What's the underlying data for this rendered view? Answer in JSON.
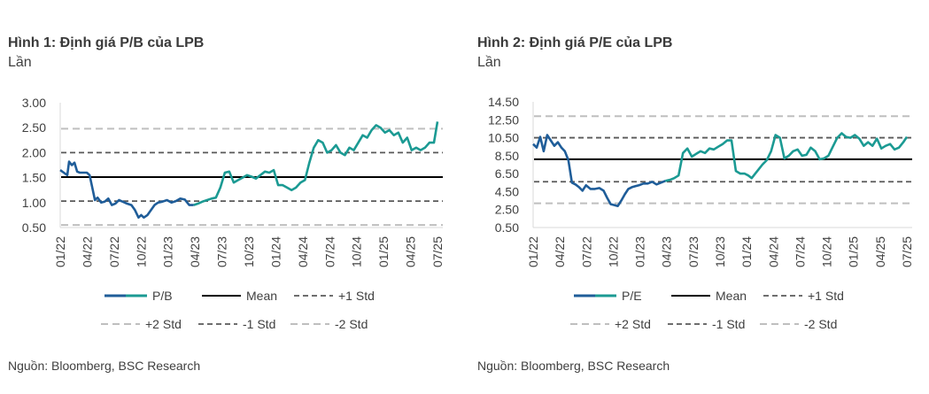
{
  "colors": {
    "series_dark": "#1f5d99",
    "series_teal": "#1b9a93",
    "mean": "#000000",
    "std1": "#595959",
    "std2": "#bfbfbf"
  },
  "legend_labels": {
    "series_pb": "P/B",
    "series_pe": "P/E",
    "mean": "Mean",
    "plus1": "+1 Std",
    "plus2": "+2 Std",
    "minus1": "-1 Std",
    "minus2": "-2 Std"
  },
  "charts": [
    {
      "title": "Hình 1: Định giá P/B của LPB",
      "unit": "Lần",
      "source": "Nguồn: Bloomberg, BSC Research"
    },
    {
      "title": "Hình 2: Định giá P/E của LPB",
      "unit": "Lần",
      "source": "Nguồn: Bloomberg, BSC Research"
    }
  ],
  "chart_data": [
    {
      "type": "line",
      "title": "Hình 1: Định giá P/B của LPB",
      "ylabel": "Lần",
      "ylim": [
        0.5,
        3.0
      ],
      "yticks": [
        "3.00",
        "2.50",
        "2.00",
        "1.50",
        "1.00",
        "0.50"
      ],
      "xlim": [
        0,
        43
      ],
      "xticks": [
        "01/22",
        "04/22",
        "07/22",
        "10/22",
        "01/23",
        "04/23",
        "07/23",
        "10/23",
        "01/24",
        "04/24",
        "07/24",
        "10/24",
        "01/25",
        "04/25",
        "07/25"
      ],
      "reference_lines": {
        "mean": 1.51,
        "plus1_std": 2.0,
        "plus2_std": 2.48,
        "minus1_std": 1.03,
        "minus2_std": 0.55
      },
      "series": [
        {
          "name": "P/B",
          "color_note": "dark blue until 04/23, teal afterwards",
          "x": [
            0,
            0.4,
            0.8,
            1.0,
            1.3,
            1.6,
            1.9,
            2.2,
            2.6,
            3.0,
            3.3,
            3.6,
            3.9,
            4.2,
            4.6,
            5.0,
            5.4,
            5.8,
            6.2,
            6.6,
            7.0,
            7.5,
            8.0,
            8.4,
            8.8,
            9.1,
            9.4,
            9.8,
            10.2,
            10.6,
            11.0,
            11.5,
            12.0,
            12.5,
            13.0,
            13.5,
            14.0,
            14.5,
            15.0,
            15.5,
            16.0,
            16.5,
            17.0,
            17.5,
            18.0,
            18.5,
            19.0,
            19.5,
            20.0,
            20.5,
            21.0,
            21.5,
            22.0,
            22.5,
            23.0,
            23.5,
            24.0,
            24.5,
            25.0,
            25.5,
            26.0,
            26.5,
            27.0,
            27.5,
            28.0,
            28.5,
            29.0,
            29.5,
            30.0,
            30.5,
            31.0,
            31.5,
            32.0,
            32.5,
            33.0,
            33.5,
            34.0,
            34.5,
            35.0,
            35.5,
            36.0,
            36.5,
            37.0,
            37.5,
            38.0,
            38.5,
            39.0,
            39.5,
            40.0,
            40.5,
            41.0,
            41.5,
            42.0,
            42.4
          ],
          "values": [
            1.65,
            1.6,
            1.55,
            1.82,
            1.75,
            1.8,
            1.62,
            1.6,
            1.6,
            1.6,
            1.55,
            1.3,
            1.05,
            1.1,
            1.0,
            1.02,
            1.08,
            0.95,
            0.98,
            1.05,
            1.02,
            0.98,
            0.95,
            0.85,
            0.7,
            0.75,
            0.7,
            0.75,
            0.85,
            0.95,
            1.0,
            1.02,
            1.05,
            1.0,
            1.03,
            1.08,
            1.06,
            0.95,
            0.95,
            0.98,
            1.02,
            1.05,
            1.08,
            1.1,
            1.3,
            1.6,
            1.62,
            1.4,
            1.45,
            1.5,
            1.55,
            1.52,
            1.48,
            1.55,
            1.62,
            1.6,
            1.65,
            1.35,
            1.35,
            1.3,
            1.25,
            1.3,
            1.4,
            1.45,
            1.8,
            2.1,
            2.25,
            2.2,
            2.0,
            2.05,
            2.15,
            2.0,
            1.95,
            2.1,
            2.05,
            2.2,
            2.35,
            2.3,
            2.45,
            2.55,
            2.5,
            2.4,
            2.45,
            2.35,
            2.4,
            2.2,
            2.3,
            2.05,
            2.1,
            2.05,
            2.1,
            2.2,
            2.2,
            2.62
          ]
        }
      ]
    },
    {
      "type": "line",
      "title": "Hình 2: Định giá P/E của LPB",
      "ylabel": "Lần",
      "ylim": [
        0.5,
        14.5
      ],
      "yticks": [
        "14.50",
        "12.50",
        "10.50",
        "8.50",
        "6.50",
        "4.50",
        "2.50",
        "0.50"
      ],
      "xlim": [
        0,
        43
      ],
      "xticks": [
        "01/22",
        "04/22",
        "07/22",
        "10/22",
        "01/23",
        "04/23",
        "07/23",
        "10/23",
        "01/24",
        "04/24",
        "07/24",
        "10/24",
        "01/25",
        "04/25",
        "07/25"
      ],
      "reference_lines": {
        "mean": 8.1,
        "plus1_std": 10.5,
        "plus2_std": 12.9,
        "minus1_std": 5.6,
        "minus2_std": 3.2
      },
      "series": [
        {
          "name": "P/E",
          "color_note": "dark blue until 04/23, teal afterwards",
          "x": [
            0,
            0.4,
            0.8,
            1.2,
            1.6,
            2.0,
            2.4,
            2.8,
            3.2,
            3.6,
            4.0,
            4.4,
            4.8,
            5.2,
            5.6,
            6.0,
            6.5,
            7.0,
            7.5,
            8.0,
            8.4,
            8.8,
            9.2,
            9.6,
            10.0,
            10.4,
            10.8,
            11.2,
            11.6,
            12.0,
            12.5,
            13.0,
            13.5,
            14.0,
            14.5,
            15.0,
            15.5,
            16.0,
            16.5,
            17.0,
            17.5,
            18.0,
            18.5,
            19.0,
            19.5,
            20.0,
            20.5,
            21.0,
            21.5,
            22.0,
            22.5,
            23.0,
            23.5,
            24.0,
            24.4,
            24.8,
            25.2,
            25.6,
            26.0,
            26.5,
            27.0,
            27.5,
            28.0,
            28.5,
            29.0,
            29.5,
            30.0,
            30.5,
            31.0,
            31.5,
            32.0,
            32.5,
            33.0,
            33.5,
            34.0,
            34.5,
            35.0,
            35.5,
            36.0,
            36.5,
            37.0,
            37.5,
            38.0,
            38.5,
            39.0,
            39.5,
            40.0,
            40.5,
            41.0,
            41.5,
            42.0,
            42.4
          ],
          "values": [
            9.8,
            9.4,
            10.6,
            9.0,
            10.8,
            10.2,
            9.6,
            10.0,
            9.4,
            9.0,
            8.0,
            5.5,
            5.3,
            5.0,
            4.6,
            5.2,
            4.8,
            4.8,
            4.9,
            4.6,
            3.8,
            3.1,
            3.0,
            2.9,
            3.5,
            4.2,
            4.8,
            5.0,
            5.1,
            5.2,
            5.4,
            5.4,
            5.6,
            5.3,
            5.5,
            5.7,
            5.8,
            6.0,
            6.3,
            8.8,
            9.3,
            8.4,
            8.7,
            9.0,
            8.8,
            9.3,
            9.2,
            9.5,
            9.8,
            10.2,
            10.2,
            6.8,
            6.5,
            6.5,
            6.3,
            6.0,
            6.5,
            7.0,
            7.5,
            8.0,
            9.0,
            10.8,
            10.5,
            8.2,
            8.5,
            9.0,
            9.2,
            8.5,
            8.6,
            9.4,
            9.0,
            8.1,
            8.2,
            8.5,
            9.5,
            10.5,
            11.0,
            10.6,
            10.5,
            10.8,
            10.4,
            9.6,
            10.0,
            9.6,
            10.4,
            9.3,
            9.6,
            9.8,
            9.2,
            9.4,
            10.0,
            10.6
          ]
        }
      ]
    }
  ]
}
